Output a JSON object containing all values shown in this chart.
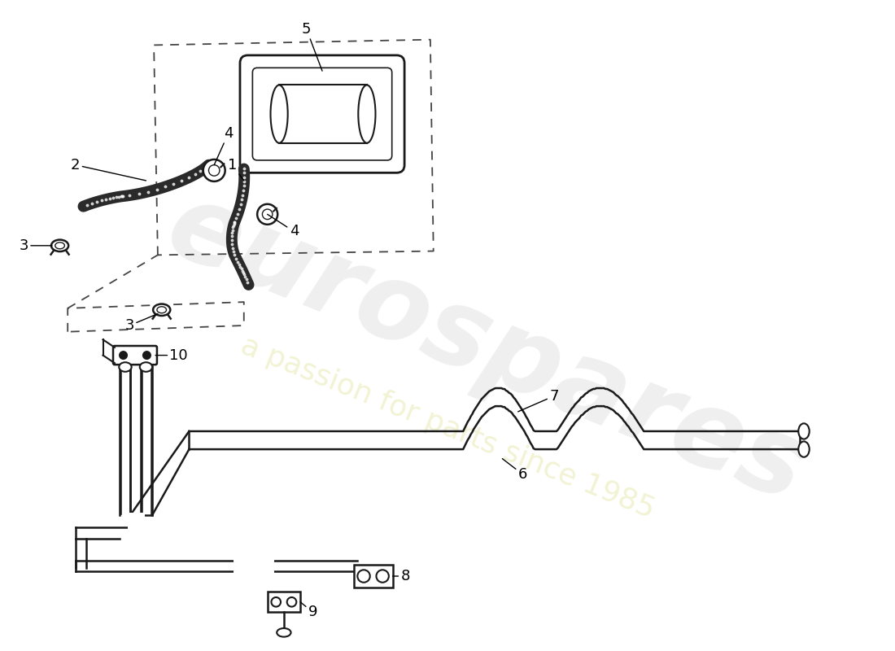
{
  "background_color": "#ffffff",
  "line_color": "#1a1a1a",
  "wm1": "eurospares",
  "wm2": "a passion for parts since 1985",
  "figsize": [
    11.0,
    8.0
  ],
  "dpi": 100
}
